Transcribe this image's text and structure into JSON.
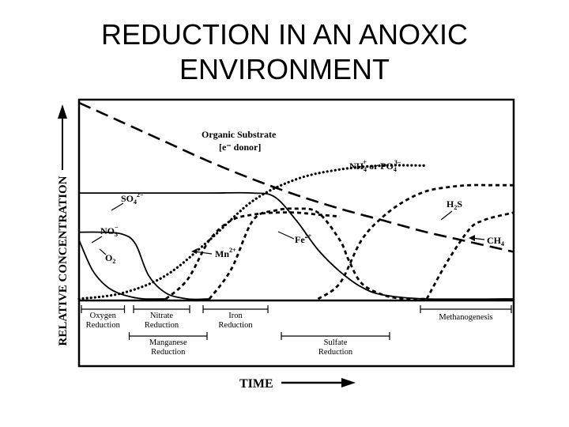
{
  "slide": {
    "title_line1": "REDUCTION IN AN ANOXIC",
    "title_line2": "ENVIRONMENT"
  },
  "chart_data": {
    "type": "line",
    "title": "REDUCTION IN AN ANOXIC ENVIRONMENT",
    "ylabel": "RELATIVE CONCENTRATION",
    "xlabel": "TIME",
    "xlim": [
      0,
      100
    ],
    "ylim": [
      0,
      100
    ],
    "grid": false,
    "series": [
      {
        "name": "Organic Substrate",
        "sublabel": "[e⁻ donor]",
        "style": "long-dash",
        "x": [
          0,
          10,
          20,
          30,
          40,
          50,
          60,
          70,
          80,
          90,
          100
        ],
        "y": [
          100,
          90,
          80,
          70,
          61,
          53,
          46,
          40,
          34,
          29,
          24
        ]
      },
      {
        "name": "NH4+ or PO4 3-",
        "label_main": "NH",
        "label_mid": " or  PO",
        "style": "dotted",
        "x": [
          0,
          10,
          20,
          30,
          40,
          50,
          60,
          70,
          80
        ],
        "y": [
          0,
          3,
          12,
          30,
          50,
          61,
          66,
          68,
          68
        ]
      },
      {
        "name": "SO4 2-",
        "label_main": "SO",
        "style": "solid",
        "x": [
          0,
          10,
          20,
          30,
          40,
          45,
          50,
          55,
          60,
          65,
          70,
          80,
          100
        ],
        "y": [
          54,
          54,
          54,
          54,
          54,
          52,
          40,
          25,
          14,
          6,
          2,
          0,
          0
        ]
      },
      {
        "name": "NO3-",
        "label_main": "NO",
        "style": "solid",
        "x": [
          0,
          5,
          10,
          13,
          16,
          20,
          25,
          30
        ],
        "y": [
          34,
          34,
          33,
          28,
          12,
          3,
          0,
          0
        ]
      },
      {
        "name": "O2",
        "label_main": "O",
        "style": "solid",
        "x": [
          0,
          3,
          6,
          9,
          12,
          15,
          20
        ],
        "y": [
          30,
          15,
          7,
          3,
          1,
          0,
          0
        ]
      },
      {
        "name": "Mn2+",
        "label_main": "Mn",
        "style": "short-dash",
        "x": [
          20,
          25,
          30,
          35,
          40,
          45,
          50,
          55,
          60
        ],
        "y": [
          0,
          10,
          30,
          40,
          43,
          44,
          44,
          43,
          42
        ]
      },
      {
        "name": "Fe2+",
        "label_main": "Fe",
        "style": "short-dash",
        "x": [
          30,
          35,
          40,
          45,
          50,
          55,
          60,
          62,
          65,
          70,
          75,
          80
        ],
        "y": [
          0,
          15,
          40,
          45,
          46,
          44,
          30,
          20,
          8,
          2,
          0,
          0
        ]
      },
      {
        "name": "H2S",
        "label_main": "S",
        "style": "short-dash",
        "x": [
          55,
          60,
          65,
          70,
          75,
          80,
          85,
          90,
          95,
          100
        ],
        "y": [
          0,
          8,
          30,
          42,
          50,
          55,
          57,
          58,
          58,
          58
        ]
      },
      {
        "name": "CH4",
        "label_main": "CH",
        "style": "short-dash",
        "x": [
          80,
          85,
          90,
          93,
          96,
          100
        ],
        "y": [
          0,
          20,
          36,
          40,
          42,
          44
        ]
      }
    ],
    "zones": [
      {
        "label": [
          "Oxygen",
          "Reduction"
        ],
        "start": 0,
        "end": 11,
        "row": 1
      },
      {
        "label": [
          "Nitrate",
          "Reduction"
        ],
        "start": 12,
        "end": 26,
        "row": 1
      },
      {
        "label": [
          "Iron",
          "Reduction"
        ],
        "start": 28,
        "end": 44,
        "row": 1
      },
      {
        "label": [
          "Methanogenesis"
        ],
        "start": 78,
        "end": 100,
        "row": 1
      },
      {
        "label": [
          "Manganese",
          "Reduction"
        ],
        "start": 11,
        "end": 30,
        "row": 2
      },
      {
        "label": [
          "Sulfate",
          "Reduction"
        ],
        "start": 46,
        "end": 72,
        "row": 2
      }
    ]
  }
}
